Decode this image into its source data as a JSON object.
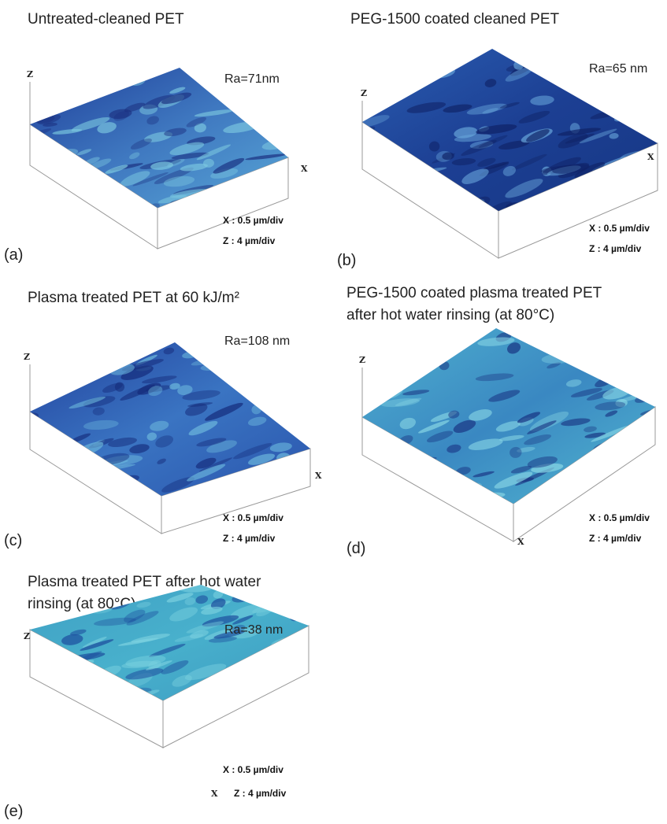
{
  "panels": [
    {
      "letter": "(a)",
      "title": [
        "Untreated-cleaned PET"
      ],
      "ra": "Ra=71nm",
      "z_axis": "Z",
      "x_axis": "X",
      "x_scale": "X : 0.5 µm/div",
      "z_scale": "Z : 4 µm/div"
    },
    {
      "letter": "(b)",
      "title": [
        "PEG-1500 coated cleaned PET"
      ],
      "ra": "Ra=65 nm",
      "z_axis": "Z",
      "x_axis": "X",
      "x_scale": "X : 0.5 µm/div",
      "z_scale": "Z : 4 µm/div"
    },
    {
      "letter": "(c)",
      "title": [
        "Plasma treated PET at 60 kJ/m²"
      ],
      "ra": "Ra=108 nm",
      "z_axis": "Z",
      "x_axis": "X",
      "x_scale": "X : 0.5 µm/div",
      "z_scale": "Z : 4 µm/div"
    },
    {
      "letter": "(d)",
      "title": [
        "PEG-1500 coated plasma treated  PET",
        "after hot water rinsing (at 80°C)"
      ],
      "z_axis": "Z",
      "x_axis": "X",
      "x_scale": "X : 0.5 µm/div",
      "z_scale": "Z : 4 µm/div"
    },
    {
      "letter": "(e)",
      "title": [
        "Plasma treated PET after hot water",
        "rinsing (at 80°C)"
      ],
      "ra": "Ra=38 nm",
      "z_axis": "Z",
      "x_axis": "X",
      "x_scale": "X : 0.5 µm/div",
      "z_scale": "Z : 4 µm/div"
    }
  ]
}
